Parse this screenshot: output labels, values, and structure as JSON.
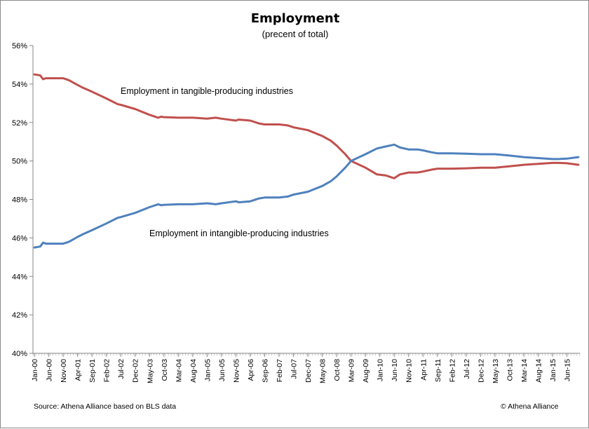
{
  "chart_data": {
    "type": "line",
    "title": "Employment",
    "subtitle": "(precent of total)",
    "ylim": [
      40,
      56
    ],
    "y_ticks": [
      "40%",
      "42%",
      "44%",
      "46%",
      "48%",
      "50%",
      "52%",
      "54%",
      "56%"
    ],
    "x_tick_labels": [
      "Jan-00",
      "Jun-00",
      "Nov-00",
      "Apr-01",
      "Sep-01",
      "Feb-02",
      "Jul-02",
      "Dec-02",
      "May-03",
      "Oct-03",
      "Mar-04",
      "Aug-04",
      "Jan-05",
      "Jun-05",
      "Nov-05",
      "Apr-06",
      "Sep-06",
      "Feb-07",
      "Jul-07",
      "Dec-07",
      "May-08",
      "Oct-08",
      "Mar-09",
      "Aug-09",
      "Jan-10",
      "Jun-10",
      "Nov-10",
      "Apr-11",
      "Sep-11",
      "Feb-12",
      "Jul-12",
      "Dec-12",
      "May-13",
      "Oct-13",
      "Mar-14",
      "Aug-14",
      "Jan-15",
      "Jun-15"
    ],
    "x_range": [
      "Jan-00",
      "Oct-15"
    ],
    "grid": false,
    "legend": "none",
    "series": [
      {
        "name": "Employment in tangible-producing industries",
        "color": "#c0504d",
        "points": [
          [
            "Jan-00",
            54.5
          ],
          [
            "Mar-00",
            54.45
          ],
          [
            "Apr-00",
            54.25
          ],
          [
            "May-00",
            54.3
          ],
          [
            "Nov-00",
            54.3
          ],
          [
            "Jan-01",
            54.2
          ],
          [
            "Apr-01",
            53.95
          ],
          [
            "Jun-01",
            53.8
          ],
          [
            "Sep-01",
            53.6
          ],
          [
            "Feb-02",
            53.25
          ],
          [
            "Jun-02",
            52.95
          ],
          [
            "Jul-02",
            52.92
          ],
          [
            "Dec-02",
            52.7
          ],
          [
            "May-03",
            52.4
          ],
          [
            "Aug-03",
            52.25
          ],
          [
            "Sep-03",
            52.3
          ],
          [
            "Oct-03",
            52.28
          ],
          [
            "Mar-04",
            52.25
          ],
          [
            "Aug-04",
            52.25
          ],
          [
            "Jan-05",
            52.2
          ],
          [
            "Apr-05",
            52.25
          ],
          [
            "Jun-05",
            52.2
          ],
          [
            "Nov-05",
            52.1
          ],
          [
            "Dec-05",
            52.15
          ],
          [
            "Apr-06",
            52.1
          ],
          [
            "Jul-06",
            51.95
          ],
          [
            "Sep-06",
            51.9
          ],
          [
            "Feb-07",
            51.9
          ],
          [
            "May-07",
            51.85
          ],
          [
            "Jul-07",
            51.75
          ],
          [
            "Dec-07",
            51.6
          ],
          [
            "May-08",
            51.3
          ],
          [
            "Aug-08",
            51.05
          ],
          [
            "Oct-08",
            50.8
          ],
          [
            "Jan-09",
            50.35
          ],
          [
            "Mar-09",
            50.0
          ],
          [
            "Aug-09",
            49.65
          ],
          [
            "Dec-09",
            49.3
          ],
          [
            "Mar-10",
            49.25
          ],
          [
            "Jun-10",
            49.1
          ],
          [
            "Aug-10",
            49.3
          ],
          [
            "Nov-10",
            49.4
          ],
          [
            "Feb-11",
            49.4
          ],
          [
            "Apr-11",
            49.45
          ],
          [
            "Jul-11",
            49.55
          ],
          [
            "Sep-11",
            49.6
          ],
          [
            "Feb-12",
            49.6
          ],
          [
            "Jul-12",
            49.62
          ],
          [
            "Dec-12",
            49.65
          ],
          [
            "Feb-13",
            49.65
          ],
          [
            "May-13",
            49.65
          ],
          [
            "Oct-13",
            49.72
          ],
          [
            "Mar-14",
            49.8
          ],
          [
            "Aug-14",
            49.85
          ],
          [
            "Jan-15",
            49.9
          ],
          [
            "Mar-15",
            49.9
          ],
          [
            "Jun-15",
            49.88
          ],
          [
            "Oct-15",
            49.8
          ]
        ]
      },
      {
        "name": "Employment in intangible-producing industries",
        "color": "#4f81bd",
        "points": [
          [
            "Jan-00",
            45.5
          ],
          [
            "Mar-00",
            45.55
          ],
          [
            "Apr-00",
            45.75
          ],
          [
            "May-00",
            45.7
          ],
          [
            "Nov-00",
            45.7
          ],
          [
            "Jan-01",
            45.8
          ],
          [
            "Apr-01",
            46.05
          ],
          [
            "Jun-01",
            46.2
          ],
          [
            "Sep-01",
            46.4
          ],
          [
            "Feb-02",
            46.75
          ],
          [
            "Jun-02",
            47.05
          ],
          [
            "Jul-02",
            47.08
          ],
          [
            "Dec-02",
            47.3
          ],
          [
            "May-03",
            47.6
          ],
          [
            "Aug-03",
            47.75
          ],
          [
            "Sep-03",
            47.7
          ],
          [
            "Oct-03",
            47.72
          ],
          [
            "Mar-04",
            47.75
          ],
          [
            "Aug-04",
            47.75
          ],
          [
            "Jan-05",
            47.8
          ],
          [
            "Apr-05",
            47.75
          ],
          [
            "Jun-05",
            47.8
          ],
          [
            "Nov-05",
            47.9
          ],
          [
            "Dec-05",
            47.85
          ],
          [
            "Apr-06",
            47.9
          ],
          [
            "Jul-06",
            48.05
          ],
          [
            "Sep-06",
            48.1
          ],
          [
            "Feb-07",
            48.1
          ],
          [
            "May-07",
            48.15
          ],
          [
            "Jul-07",
            48.25
          ],
          [
            "Dec-07",
            48.4
          ],
          [
            "May-08",
            48.7
          ],
          [
            "Aug-08",
            48.95
          ],
          [
            "Oct-08",
            49.2
          ],
          [
            "Jan-09",
            49.65
          ],
          [
            "Mar-09",
            50.0
          ],
          [
            "Aug-09",
            50.35
          ],
          [
            "Dec-09",
            50.65
          ],
          [
            "Mar-10",
            50.75
          ],
          [
            "Jun-10",
            50.85
          ],
          [
            "Aug-10",
            50.7
          ],
          [
            "Nov-10",
            50.6
          ],
          [
            "Feb-11",
            50.6
          ],
          [
            "Apr-11",
            50.55
          ],
          [
            "Jul-11",
            50.45
          ],
          [
            "Sep-11",
            50.4
          ],
          [
            "Feb-12",
            50.4
          ],
          [
            "Jul-12",
            50.38
          ],
          [
            "Dec-12",
            50.35
          ],
          [
            "Feb-13",
            50.35
          ],
          [
            "May-13",
            50.35
          ],
          [
            "Oct-13",
            50.28
          ],
          [
            "Mar-14",
            50.2
          ],
          [
            "Aug-14",
            50.15
          ],
          [
            "Jan-15",
            50.1
          ],
          [
            "Mar-15",
            50.1
          ],
          [
            "Jun-15",
            50.12
          ],
          [
            "Oct-15",
            50.2
          ]
        ]
      }
    ],
    "annotations": [
      {
        "text": "Employment in tangible-producing industries",
        "series": 0
      },
      {
        "text": "Employment in intangible-producing industries",
        "series": 1
      }
    ],
    "source": "Source: Athena Alliance based on BLS data",
    "credit": "© Athena Alliance"
  }
}
